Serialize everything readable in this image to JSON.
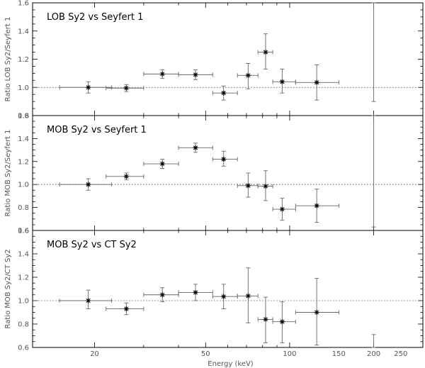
{
  "chart_data": {
    "type": "scatter",
    "x_scale": "log",
    "xlim": [
      12,
      300
    ],
    "xlabel": "Energy (keV)",
    "x_tick_labels": [
      "20",
      "50",
      "100",
      "150",
      "200",
      "250"
    ],
    "reference_line": 1.0,
    "panels": [
      {
        "title": "LOB Sy2 vs Seyfert 1",
        "ylabel": "Ratio LOB Sy2/Seyfert 1",
        "ylim": [
          0.8,
          1.6
        ],
        "y_ticks": [
          "0.8",
          "1.0",
          "1.2",
          "1.4",
          "1.6"
        ],
        "points": [
          {
            "x": 19,
            "xlo": 15,
            "xhi": 23,
            "y": 1.0,
            "ylo": 0.96,
            "yhi": 1.04
          },
          {
            "x": 26,
            "xlo": 22,
            "xhi": 30,
            "y": 0.995,
            "ylo": 0.97,
            "yhi": 1.02
          },
          {
            "x": 35,
            "xlo": 30,
            "xhi": 40,
            "y": 1.095,
            "ylo": 1.065,
            "yhi": 1.125
          },
          {
            "x": 46,
            "xlo": 40,
            "xhi": 53,
            "y": 1.09,
            "ylo": 1.055,
            "yhi": 1.125
          },
          {
            "x": 58,
            "xlo": 53,
            "xhi": 65,
            "y": 0.96,
            "ylo": 0.91,
            "yhi": 1.01
          },
          {
            "x": 71,
            "xlo": 65,
            "xhi": 77,
            "y": 1.085,
            "ylo": 0.99,
            "yhi": 1.17
          },
          {
            "x": 82,
            "xlo": 77,
            "xhi": 87,
            "y": 1.25,
            "ylo": 1.13,
            "yhi": 1.38
          },
          {
            "x": 94,
            "xlo": 87,
            "xhi": 105,
            "y": 1.04,
            "ylo": 0.96,
            "yhi": 1.13
          },
          {
            "x": 125,
            "xlo": 105,
            "xhi": 150,
            "y": 1.035,
            "ylo": 0.91,
            "yhi": 1.16
          },
          {
            "x": 200,
            "xlo": 200,
            "xhi": 200,
            "y": null,
            "ylo": 0.9,
            "yhi": 1.6
          }
        ]
      },
      {
        "title": "MOB Sy2 vs Seyfert 1",
        "ylabel": "Ratio MOB Sy2/Seyfert 1",
        "ylim": [
          0.6,
          1.6
        ],
        "y_ticks": [
          "0.6",
          "0.8",
          "1.0",
          "1.2",
          "1.4",
          "1.6"
        ],
        "points": [
          {
            "x": 19,
            "xlo": 15,
            "xhi": 23,
            "y": 1.0,
            "ylo": 0.95,
            "yhi": 1.05
          },
          {
            "x": 26,
            "xlo": 22,
            "xhi": 30,
            "y": 1.07,
            "ylo": 1.04,
            "yhi": 1.1
          },
          {
            "x": 35,
            "xlo": 30,
            "xhi": 40,
            "y": 1.18,
            "ylo": 1.14,
            "yhi": 1.22
          },
          {
            "x": 46,
            "xlo": 40,
            "xhi": 53,
            "y": 1.32,
            "ylo": 1.28,
            "yhi": 1.36
          },
          {
            "x": 58,
            "xlo": 53,
            "xhi": 65,
            "y": 1.22,
            "ylo": 1.16,
            "yhi": 1.29
          },
          {
            "x": 71,
            "xlo": 65,
            "xhi": 77,
            "y": 0.99,
            "ylo": 0.89,
            "yhi": 1.1
          },
          {
            "x": 82,
            "xlo": 77,
            "xhi": 87,
            "y": 0.985,
            "ylo": 0.86,
            "yhi": 1.12
          },
          {
            "x": 94,
            "xlo": 87,
            "xhi": 105,
            "y": 0.785,
            "ylo": 0.69,
            "yhi": 0.88
          },
          {
            "x": 125,
            "xlo": 105,
            "xhi": 150,
            "y": 0.815,
            "ylo": 0.67,
            "yhi": 0.96
          },
          {
            "x": 200,
            "xlo": 200,
            "xhi": 200,
            "y": null,
            "ylo": 0.63,
            "yhi": 1.6
          }
        ]
      },
      {
        "title": "MOB Sy2 vs CT Sy2",
        "ylabel": "Ratio MOB Sy2/CT Sy2",
        "ylim": [
          0.6,
          1.6
        ],
        "y_ticks": [
          "0.6",
          "0.8",
          "1.0",
          "1.2",
          "1.4",
          "1.6"
        ],
        "points": [
          {
            "x": 19,
            "xlo": 15,
            "xhi": 23,
            "y": 1.0,
            "ylo": 0.93,
            "yhi": 1.09
          },
          {
            "x": 26,
            "xlo": 22,
            "xhi": 30,
            "y": 0.93,
            "ylo": 0.88,
            "yhi": 0.98
          },
          {
            "x": 35,
            "xlo": 30,
            "xhi": 40,
            "y": 1.05,
            "ylo": 0.99,
            "yhi": 1.11
          },
          {
            "x": 46,
            "xlo": 40,
            "xhi": 53,
            "y": 1.07,
            "ylo": 1.0,
            "yhi": 1.14
          },
          {
            "x": 58,
            "xlo": 53,
            "xhi": 65,
            "y": 1.035,
            "ylo": 0.93,
            "yhi": 1.14
          },
          {
            "x": 71,
            "xlo": 65,
            "xhi": 77,
            "y": 1.04,
            "ylo": 0.81,
            "yhi": 1.28
          },
          {
            "x": 82,
            "xlo": 77,
            "xhi": 87,
            "y": 0.84,
            "ylo": 0.64,
            "yhi": 1.03
          },
          {
            "x": 94,
            "xlo": 87,
            "xhi": 105,
            "y": 0.82,
            "ylo": 0.64,
            "yhi": 0.99
          },
          {
            "x": 125,
            "xlo": 105,
            "xhi": 150,
            "y": 0.9,
            "ylo": 0.62,
            "yhi": 1.19
          },
          {
            "x": 200,
            "xlo": 200,
            "xhi": 200,
            "y": null,
            "ylo": 0.6,
            "yhi": 0.71
          }
        ]
      }
    ]
  }
}
